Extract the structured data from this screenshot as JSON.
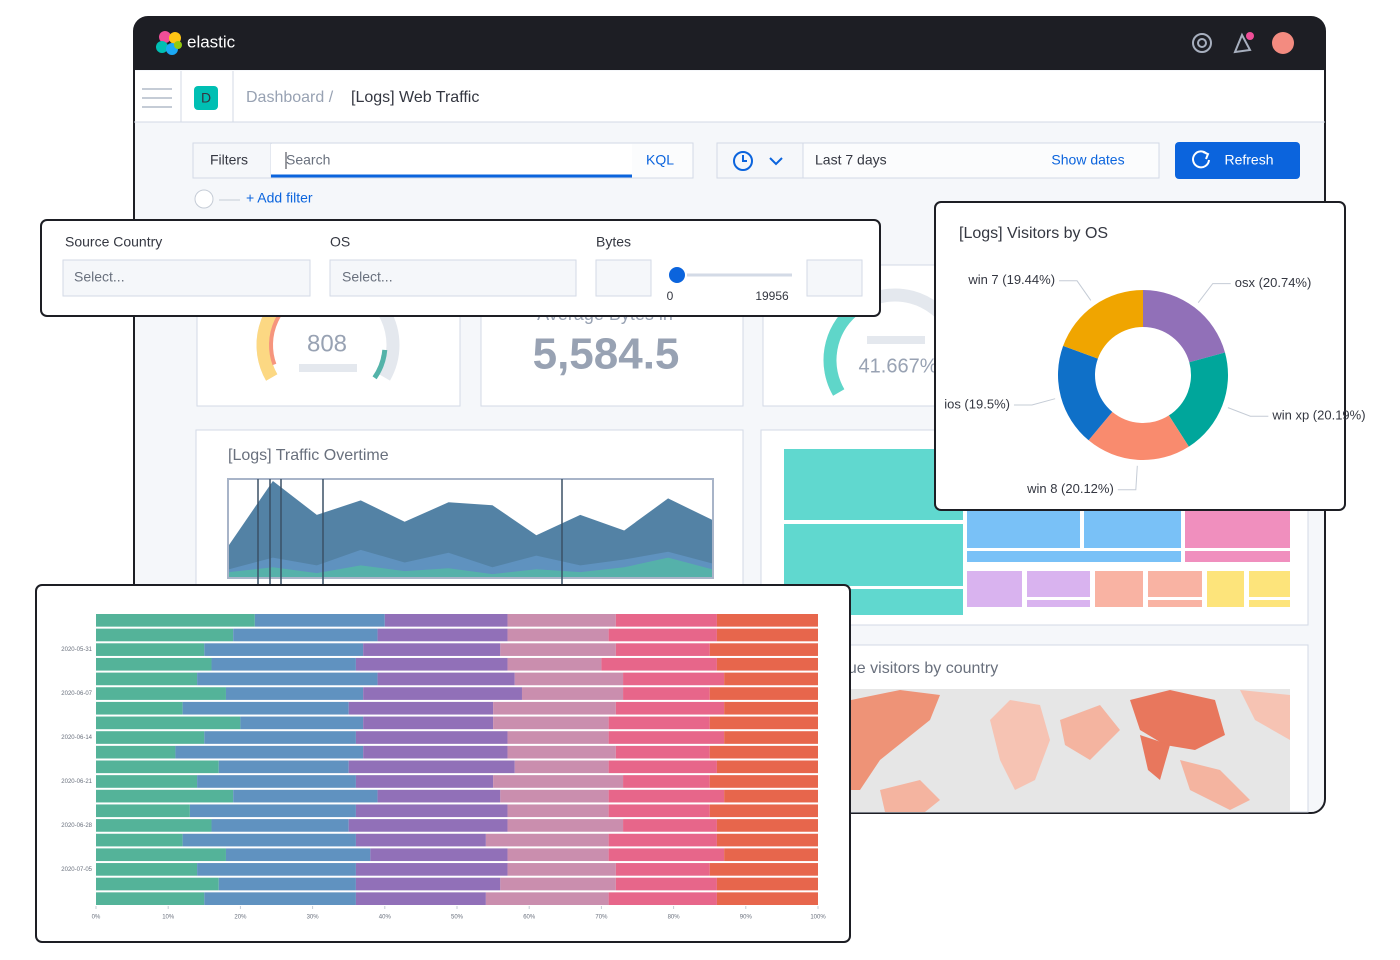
{
  "header": {
    "brand": "elastic"
  },
  "breadcrumb": {
    "badge": "D",
    "parent": "Dashboard /",
    "current": "[Logs] Web Traffic"
  },
  "query_bar": {
    "filters": "Filters",
    "search_placeholder": "Search",
    "language": "KQL",
    "add_filter": "+ Add filter"
  },
  "time_picker": {
    "range": "Last 7 days",
    "show_dates": "Show dates",
    "refresh": "Refresh"
  },
  "controls": {
    "labels": [
      "Source Country",
      "OS",
      "Bytes"
    ],
    "placeholders": [
      "Select...",
      "Select..."
    ],
    "slider_min": 0,
    "slider_max": 19956
  },
  "metrics": [
    {
      "value": "808"
    },
    {
      "label": "Average Bytes in",
      "value": "5,584.5"
    },
    {
      "value": "41.667%"
    }
  ],
  "panels": {
    "map": "Unique visitors by country"
  },
  "chart_data": [
    {
      "type": "area",
      "title": "[Logs] Traffic Overtime",
      "ylim": [
        0,
        100
      ],
      "series": [
        {
          "color": "#4a7ba0",
          "values": [
            33,
            99,
            64,
            79,
            57,
            77,
            74,
            43,
            64,
            48,
            81,
            59
          ]
        },
        {
          "color": "#6092c0",
          "values": [
            8,
            20,
            12,
            28,
            15,
            25,
            10,
            22,
            12,
            18,
            26,
            14
          ]
        },
        {
          "color": "#54b3a9",
          "values": [
            5,
            10,
            4,
            12,
            6,
            9,
            3,
            8,
            5,
            10,
            20,
            8
          ]
        }
      ]
    },
    {
      "type": "pie",
      "title": "[Logs] Visitors by OS",
      "values": [
        20.74,
        20.19,
        20.12,
        19.5,
        19.44
      ],
      "value_labels": [
        "osx (20.74%)",
        "win xp (20.19%)",
        "win 8 (20.12%)",
        "ios (19.5%)",
        "win 7 (19.44%)"
      ],
      "colors": [
        "#9170b8",
        "#00a69b",
        "#f98b6e",
        "#0f70c8",
        "#f0a500"
      ]
    },
    {
      "type": "stacked_bar_percent",
      "categories": [
        null,
        null,
        "2020-05-31",
        null,
        null,
        "2020-06-07",
        null,
        null,
        "2020-06-14",
        null,
        null,
        "2020-06-21",
        null,
        null,
        "2020-06-28",
        null,
        null,
        "2020-07-05",
        null,
        null
      ],
      "xlim": [
        0,
        100
      ],
      "xticks": [
        {
          "value": 0,
          "label": "0%"
        },
        {
          "value": 10,
          "label": "10%"
        },
        {
          "value": 20,
          "label": "20%"
        },
        {
          "value": 30,
          "label": "30%"
        },
        {
          "value": 40,
          "label": "40%"
        },
        {
          "value": 50,
          "label": "50%"
        },
        {
          "value": 60,
          "label": "60%"
        },
        {
          "value": 70,
          "label": "70%"
        },
        {
          "value": 80,
          "label": "80%"
        },
        {
          "value": 90,
          "label": "90%"
        },
        {
          "value": 100,
          "label": "100%"
        }
      ],
      "series": [
        {
          "color": "#54b399",
          "values": [
            22,
            19,
            15,
            16,
            14,
            18,
            12,
            20,
            15,
            11,
            17,
            14,
            19,
            13,
            16,
            12,
            18,
            14,
            17,
            15
          ]
        },
        {
          "color": "#6092c0",
          "values": [
            18,
            20,
            22,
            20,
            25,
            19,
            23,
            17,
            21,
            26,
            18,
            22,
            20,
            23,
            19,
            24,
            20,
            22,
            19,
            21
          ]
        },
        {
          "color": "#9170b8",
          "values": [
            17,
            18,
            19,
            21,
            19,
            22,
            20,
            18,
            21,
            20,
            23,
            19,
            17,
            21,
            22,
            18,
            19,
            21,
            20,
            18
          ]
        },
        {
          "color": "#ca8eae",
          "values": [
            15,
            14,
            16,
            13,
            15,
            14,
            17,
            16,
            14,
            15,
            13,
            18,
            15,
            14,
            16,
            17,
            14,
            15,
            16,
            17
          ]
        },
        {
          "color": "#e7668a",
          "values": [
            14,
            15,
            13,
            16,
            14,
            12,
            15,
            14,
            16,
            13,
            15,
            12,
            16,
            14,
            13,
            15,
            16,
            13,
            14,
            15
          ]
        },
        {
          "color": "#e7664c",
          "values": [
            14,
            14,
            15,
            14,
            13,
            15,
            13,
            15,
            13,
            15,
            14,
            15,
            13,
            15,
            14,
            14,
            13,
            15,
            14,
            14
          ]
        }
      ]
    }
  ]
}
